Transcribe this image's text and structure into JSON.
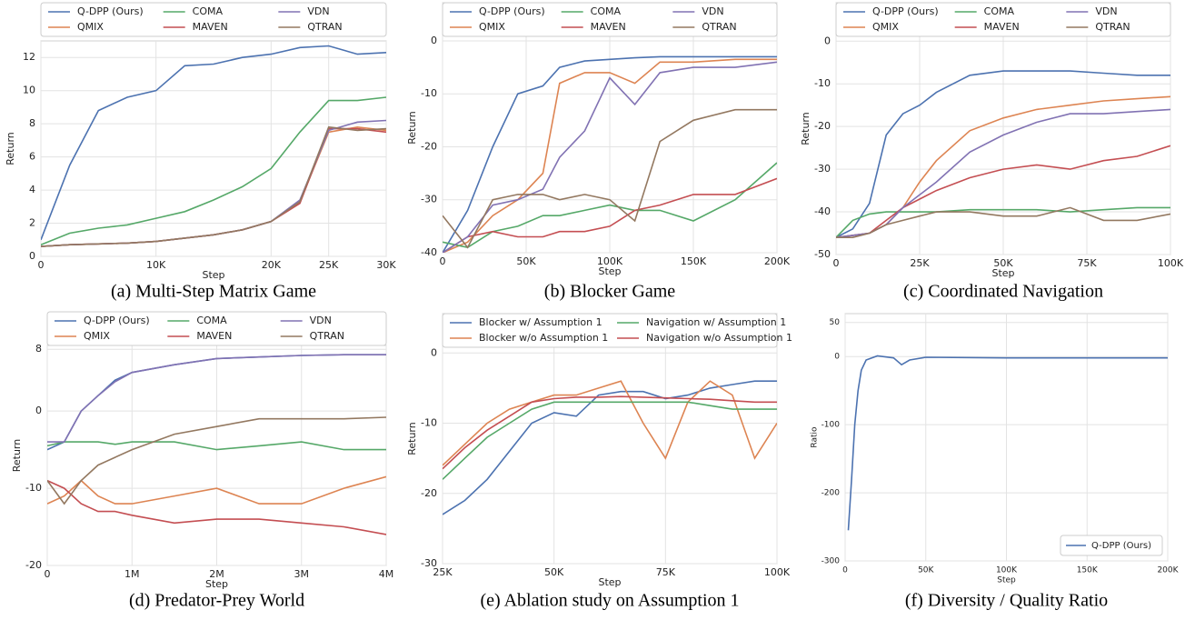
{
  "chart_data": [
    {
      "type": "line",
      "title": "(a) Multi-Step Matrix Game",
      "x_label": "Step",
      "y_label": "Return",
      "x": [
        0,
        2500,
        5000,
        7500,
        10000,
        12500,
        15000,
        17500,
        20000,
        22500,
        25000,
        27500,
        30000
      ],
      "xlim": [
        0,
        30000
      ],
      "ylim": [
        0,
        13
      ],
      "xticks": [
        0,
        {
          "value": 10000,
          "label": "10K"
        },
        {
          "value": 20000,
          "label": "20K"
        },
        {
          "value": 25000,
          "label": "25K"
        },
        {
          "value": 30000,
          "label": "30K"
        }
      ],
      "yticks": [
        0,
        2,
        4,
        6,
        8,
        10,
        12
      ],
      "grid": true,
      "legend": "upper center",
      "series": [
        {
          "name": "Q-DPP (Ours)",
          "color": "#4c72b0",
          "values": [
            1,
            5.5,
            8.8,
            9.6,
            10,
            11.5,
            11.6,
            12.0,
            12.2,
            12.6,
            12.7,
            12.2,
            12.3
          ]
        },
        {
          "name": "QMIX",
          "color": "#dd8452",
          "values": [
            0.6,
            0.7,
            0.75,
            0.8,
            0.9,
            1.1,
            1.3,
            1.6,
            2.1,
            3.3,
            7.5,
            7.8,
            7.6
          ]
        },
        {
          "name": "COMA",
          "color": "#55a868",
          "values": [
            0.7,
            1.4,
            1.7,
            1.9,
            2.3,
            2.7,
            3.4,
            4.2,
            5.3,
            7.5,
            9.4,
            9.4,
            9.6
          ]
        },
        {
          "name": "MAVEN",
          "color": "#c44e52",
          "values": [
            0.6,
            0.7,
            0.75,
            0.8,
            0.9,
            1.1,
            1.3,
            1.6,
            2.1,
            3.2,
            7.7,
            7.7,
            7.5
          ]
        },
        {
          "name": "VDN",
          "color": "#8172b3",
          "values": [
            0.6,
            0.7,
            0.75,
            0.8,
            0.9,
            1.1,
            1.3,
            1.6,
            2.1,
            3.4,
            7.6,
            8.1,
            8.2
          ]
        },
        {
          "name": "QTRAN",
          "color": "#937860",
          "values": [
            0.6,
            0.7,
            0.75,
            0.8,
            0.9,
            1.1,
            1.3,
            1.6,
            2.1,
            3.3,
            7.8,
            7.6,
            7.7
          ]
        }
      ]
    },
    {
      "type": "line",
      "title": "(b) Blocker Game",
      "x_label": "Step",
      "y_label": "Return",
      "x": [
        0,
        15000,
        30000,
        45000,
        60000,
        70000,
        85000,
        100000,
        115000,
        130000,
        150000,
        175000,
        200000
      ],
      "xlim": [
        0,
        200000
      ],
      "ylim": [
        -40,
        7.2
      ],
      "xticks": [
        0,
        {
          "value": 50000,
          "label": "50K"
        },
        {
          "value": 100000,
          "label": "100K"
        },
        {
          "value": 150000,
          "label": "150K"
        },
        {
          "value": 200000,
          "label": "200K"
        }
      ],
      "yticks": [
        0,
        -10,
        -20,
        -30,
        -40
      ],
      "grid": true,
      "legend": "upper center",
      "series": [
        {
          "name": "Q-DPP (Ours)",
          "color": "#4c72b0",
          "values": [
            -40,
            -32,
            -20,
            -10,
            -8.5,
            -5,
            -3.8,
            -3.5,
            -3.2,
            -3,
            -3,
            -3,
            -3
          ]
        },
        {
          "name": "QMIX",
          "color": "#dd8452",
          "values": [
            -40,
            -38,
            -33,
            -30,
            -25,
            -8,
            -6,
            -6,
            -8,
            -4,
            -4,
            -3.5,
            -3.5
          ]
        },
        {
          "name": "COMA",
          "color": "#55a868",
          "values": [
            -38,
            -39,
            -36,
            -35,
            -33,
            -33,
            -32,
            -31,
            -32,
            -32,
            -34,
            -30,
            -23
          ]
        },
        {
          "name": "MAVEN",
          "color": "#c44e52",
          "values": [
            -40,
            -37,
            -36,
            -37,
            -37,
            -36,
            -36,
            -35,
            -32,
            -31,
            -29,
            -29,
            -26
          ]
        },
        {
          "name": "VDN",
          "color": "#8172b3",
          "values": [
            -40,
            -37,
            -31,
            -30,
            -28,
            -22,
            -17,
            -7,
            -12,
            -6,
            -5,
            -5,
            -4
          ]
        },
        {
          "name": "QTRAN",
          "color": "#937860",
          "values": [
            -33,
            -39,
            -30,
            -29,
            -29,
            -30,
            -29,
            -30,
            -34,
            -19,
            -15,
            -13,
            -13
          ]
        }
      ]
    },
    {
      "type": "line",
      "title": "(c) Coordinated Navigation",
      "x_label": "Step",
      "y_label": "Return",
      "x": [
        0,
        5000,
        10000,
        15000,
        20000,
        25000,
        30000,
        40000,
        50000,
        60000,
        70000,
        80000,
        90000,
        100000
      ],
      "xlim": [
        0,
        100000
      ],
      "ylim": [
        -50,
        9
      ],
      "xticks": [
        0,
        {
          "value": 25000,
          "label": "25K"
        },
        {
          "value": 50000,
          "label": "50K"
        },
        {
          "value": 75000,
          "label": "75K"
        },
        {
          "value": 100000,
          "label": "100K"
        }
      ],
      "yticks": [
        0,
        -10,
        -20,
        -30,
        -40,
        -50
      ],
      "grid": true,
      "legend": "upper center",
      "series": [
        {
          "name": "Q-DPP (Ours)",
          "color": "#4c72b0",
          "values": [
            -46,
            -44,
            -38,
            -22,
            -17,
            -15,
            -12,
            -8,
            -7,
            -7,
            -7,
            -7.5,
            -8,
            -8
          ]
        },
        {
          "name": "QMIX",
          "color": "#dd8452",
          "values": [
            -46,
            -45.5,
            -45,
            -43,
            -39,
            -33,
            -28,
            -21,
            -18,
            -16,
            -15,
            -14,
            -13.5,
            -13
          ]
        },
        {
          "name": "COMA",
          "color": "#55a868",
          "values": [
            -46,
            -42,
            -40.5,
            -40,
            -40,
            -40,
            -40,
            -39.5,
            -39.5,
            -39.5,
            -40,
            -39.5,
            -39,
            -39
          ]
        },
        {
          "name": "MAVEN",
          "color": "#c44e52",
          "values": [
            -46,
            -45.5,
            -45,
            -42,
            -39,
            -37,
            -35,
            -32,
            -30,
            -29,
            -30,
            -28,
            -27,
            -24.5
          ]
        },
        {
          "name": "VDN",
          "color": "#8172b3",
          "values": [
            -46,
            -45.5,
            -45,
            -43,
            -39,
            -36,
            -33,
            -26,
            -22,
            -19,
            -17,
            -17,
            -16.5,
            -16
          ]
        },
        {
          "name": "QTRAN",
          "color": "#937860",
          "values": [
            -46,
            -46,
            -45,
            -43,
            -42,
            -41,
            -40,
            -40,
            -41,
            -41,
            -39,
            -42,
            -42,
            -40.5
          ]
        }
      ]
    },
    {
      "type": "line",
      "title": "(d) Predator-Prey World",
      "x_label": "Step",
      "y_label": "Return",
      "x": [
        0,
        200000,
        400000,
        600000,
        800000,
        1000000,
        1500000,
        2000000,
        2500000,
        3000000,
        3500000,
        4000000
      ],
      "xlim": [
        0,
        4000000
      ],
      "ylim": [
        -20,
        8.5
      ],
      "xticks": [
        0,
        {
          "value": 1000000,
          "label": "1M"
        },
        {
          "value": 2000000,
          "label": "2M"
        },
        {
          "value": 3000000,
          "label": "3M"
        },
        {
          "value": 4000000,
          "label": "4M"
        }
      ],
      "yticks": [
        8,
        0,
        -10,
        -20
      ],
      "grid": true,
      "legend": "upper center",
      "series": [
        {
          "name": "Q-DPP (Ours)",
          "color": "#4c72b0",
          "values": [
            -5,
            -4,
            0,
            2,
            4,
            5,
            6,
            6.8,
            7,
            7.2,
            7.3,
            7.3
          ]
        },
        {
          "name": "QMIX",
          "color": "#dd8452",
          "values": [
            -12,
            -11,
            -9,
            -11,
            -12,
            -12,
            -11,
            -10,
            -12,
            -12,
            -10,
            -8.5
          ]
        },
        {
          "name": "COMA",
          "color": "#55a868",
          "values": [
            -4.5,
            -4,
            -4,
            -4,
            -4.3,
            -4,
            -4,
            -5,
            -4.5,
            -4,
            -5,
            -5
          ]
        },
        {
          "name": "MAVEN",
          "color": "#c44e52",
          "values": [
            -9,
            -10,
            -12,
            -13,
            -13,
            -13.5,
            -14.5,
            -14,
            -14,
            -14.5,
            -15,
            -16
          ]
        },
        {
          "name": "VDN",
          "color": "#8172b3",
          "values": [
            -4,
            -4,
            0,
            2,
            3.8,
            5,
            6,
            6.8,
            7,
            7.2,
            7.3,
            7.3
          ]
        },
        {
          "name": "QTRAN",
          "color": "#937860",
          "values": [
            -9,
            -12,
            -9,
            -7,
            -6,
            -5,
            -3,
            -2,
            -1,
            -1,
            -1,
            -0.8
          ]
        }
      ]
    },
    {
      "type": "line",
      "title": "(e) Ablation study on Assumption 1",
      "x_label": "Step",
      "y_label": "Return",
      "x": [
        25000,
        30000,
        35000,
        40000,
        45000,
        50000,
        55000,
        60000,
        65000,
        70000,
        75000,
        80000,
        85000,
        90000,
        95000,
        100000
      ],
      "xlim": [
        25000,
        100000
      ],
      "ylim": [
        -30,
        5.6
      ],
      "xticks": [
        {
          "value": 25000,
          "label": "25K"
        },
        {
          "value": 50000,
          "label": "50K"
        },
        {
          "value": 75000,
          "label": "75K"
        },
        {
          "value": 100000,
          "label": "100K"
        }
      ],
      "yticks": [
        0,
        -10,
        -20,
        -30
      ],
      "grid": true,
      "legend": "upper center",
      "series": [
        {
          "name": "Blocker w/ Assumption 1",
          "color": "#4c72b0",
          "values": [
            -23,
            -21,
            -18,
            -14,
            -10,
            -8.5,
            -9,
            -6,
            -5.5,
            -5.5,
            -6.5,
            -6,
            -5,
            -4.5,
            -4,
            -4
          ]
        },
        {
          "name": "Blocker w/o Assumption 1",
          "color": "#dd8452",
          "values": [
            -16,
            -13,
            -10,
            -8,
            -7,
            -6,
            -6,
            -5,
            -4,
            -10,
            -15,
            -7,
            -4,
            -6,
            -15,
            -10
          ]
        },
        {
          "name": "Navigation w/ Assumption 1",
          "color": "#55a868",
          "values": [
            -18,
            -15,
            -12,
            -10,
            -8,
            -7,
            -7,
            -7,
            -7,
            -7,
            -7,
            -7,
            -7.5,
            -8,
            -8,
            -8
          ]
        },
        {
          "name": "Navigation w/o Assumption 1",
          "color": "#c44e52",
          "values": [
            -16.5,
            -13.5,
            -11,
            -9,
            -7,
            -6.5,
            -6.3,
            -6.3,
            -6.2,
            -6.3,
            -6.4,
            -6.5,
            -6.6,
            -6.8,
            -7,
            -7
          ]
        }
      ]
    },
    {
      "type": "line",
      "title": "(f) Diversity / Quality Ratio",
      "x_label": "Step",
      "y_label": "Ratio",
      "x": [
        2000,
        4000,
        6000,
        8000,
        10000,
        13000,
        20000,
        30000,
        35000,
        40000,
        50000,
        100000,
        150000,
        200000
      ],
      "xlim": [
        0,
        200000
      ],
      "ylim": [
        -300,
        63
      ],
      "xticks": [
        0,
        {
          "value": 50000,
          "label": "50K"
        },
        {
          "value": 100000,
          "label": "100K"
        },
        {
          "value": 150000,
          "label": "150K"
        },
        {
          "value": 200000,
          "label": "200K"
        }
      ],
      "yticks": [
        50,
        0,
        -100,
        -200,
        -300
      ],
      "grid": true,
      "legend": "lower right",
      "series": [
        {
          "name": "Q-DPP (Ours)",
          "color": "#4c72b0",
          "values": [
            -255,
            -180,
            -100,
            -50,
            -20,
            -5,
            1,
            -2,
            -12,
            -5,
            -1,
            -2,
            -2,
            -2
          ]
        }
      ]
    }
  ]
}
